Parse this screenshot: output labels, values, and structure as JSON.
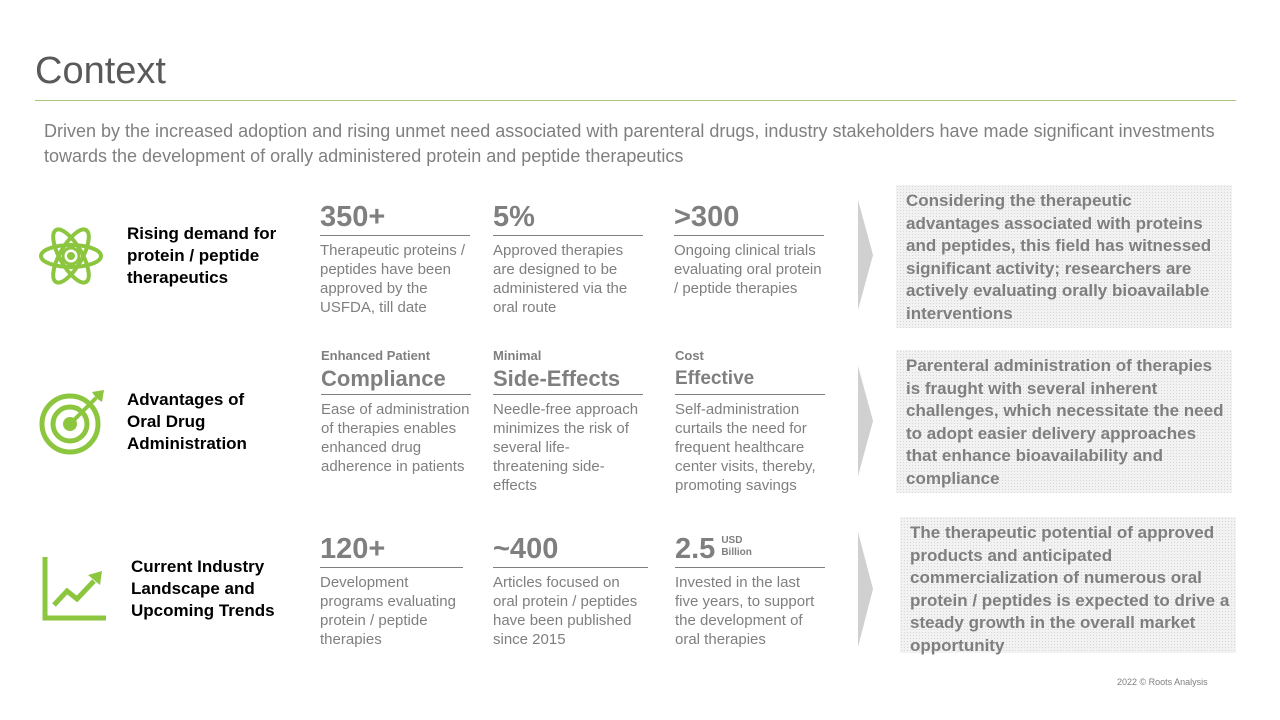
{
  "title": "Context",
  "subtitle": "Driven by the increased adoption and rising unmet need associated with parenteral drugs, industry stakeholders have made significant investments towards the development of orally administered protein and peptide therapeutics",
  "colors": {
    "accent": "#8cc63f",
    "rule": "#a9c47f",
    "text": "#7f7f7f"
  },
  "rows": [
    {
      "icon": "atom-icon",
      "label": "Rising demand for protein / peptide therapeutics",
      "stats": [
        {
          "value": "350+",
          "desc": "Therapeutic proteins / peptides have been approved by the USFDA, till date"
        },
        {
          "value": "5%",
          "desc": "Approved therapies are designed to be administered via the oral route"
        },
        {
          "value": ">300",
          "desc": "Ongoing clinical trials evaluating oral protein / peptide therapies"
        }
      ],
      "callout": "Considering the therapeutic advantages associated with proteins and peptides, this field has witnessed significant activity; researchers are actively evaluating orally bioavailable interventions"
    },
    {
      "icon": "target-icon",
      "label": "Advantages of Oral Drug Administration",
      "stats": [
        {
          "head": "Enhanced Patient",
          "value": "Compliance",
          "desc": "Ease of administration of therapies enables enhanced drug adherence in patients"
        },
        {
          "head": "Minimal",
          "value": "Side-Effects",
          "desc": "Needle-free approach minimizes the risk of several life-threatening side-effects"
        },
        {
          "head": "Cost",
          "value": "Effective",
          "desc": "Self-administration curtails the need for frequent healthcare center visits, thereby, promoting savings"
        }
      ],
      "callout": "Parenteral administration of therapies is fraught with several inherent challenges, which necessitate the need to adopt easier delivery approaches that enhance bioavailability and compliance"
    },
    {
      "icon": "growth-chart-icon",
      "label": "Current Industry Landscape and Upcoming Trends",
      "stats": [
        {
          "value": "120+",
          "desc": "Development programs evaluating protein / peptide therapies"
        },
        {
          "value": "~400",
          "desc": "Articles focused on oral protein / peptides have been published since 2015"
        },
        {
          "value": "2.5",
          "unit_line1": "USD",
          "unit_line2": "Billion",
          "desc": "Invested in the last five years, to support the development of oral therapies"
        }
      ],
      "callout": "The therapeutic potential of approved products and anticipated commercialization of numerous oral protein / peptides is expected to drive a steady growth in the overall market opportunity"
    }
  ],
  "footer": "2022 © Roots Analysis"
}
